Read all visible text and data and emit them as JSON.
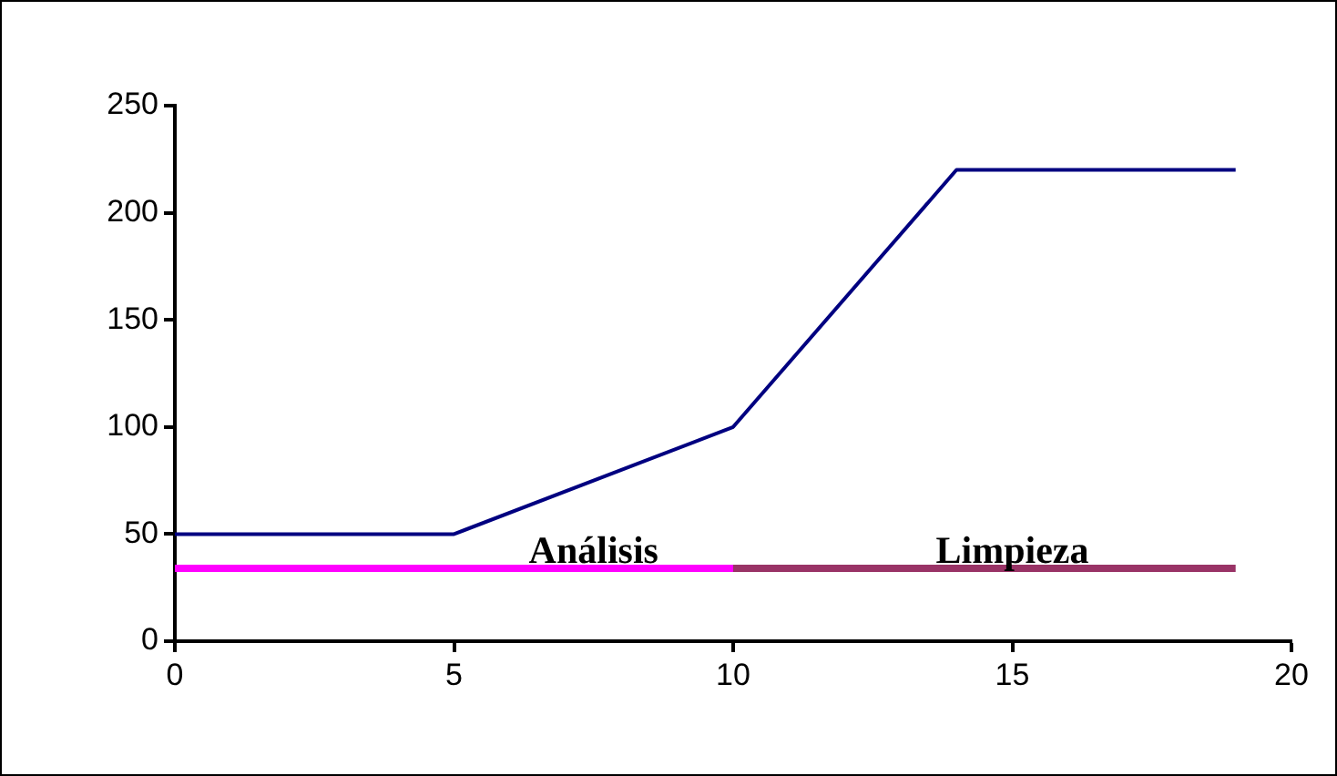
{
  "chart_data": {
    "type": "line",
    "xlim": [
      0,
      20
    ],
    "xticks": [
      0,
      5,
      10,
      15,
      20
    ],
    "ylim": [
      0,
      250
    ],
    "yticks": [
      0,
      50,
      100,
      150,
      200,
      250
    ],
    "grid": false,
    "legend": false,
    "marker": "none",
    "series": [
      {
        "color": "#000080",
        "x": [
          0,
          5,
          10,
          14,
          19
        ],
        "values": [
          50,
          50,
          100,
          220,
          220
        ]
      },
      {
        "color": "#ff00ff",
        "x": [
          0,
          10
        ],
        "values": [
          34,
          34
        ]
      },
      {
        "color": "#993366",
        "x": [
          10,
          19
        ],
        "values": [
          34,
          34
        ]
      }
    ],
    "annotations": [
      {
        "text": "Análisis",
        "x": 7.5,
        "y": 34
      },
      {
        "text": "Limpieza",
        "x": 15,
        "y": 34
      }
    ]
  }
}
